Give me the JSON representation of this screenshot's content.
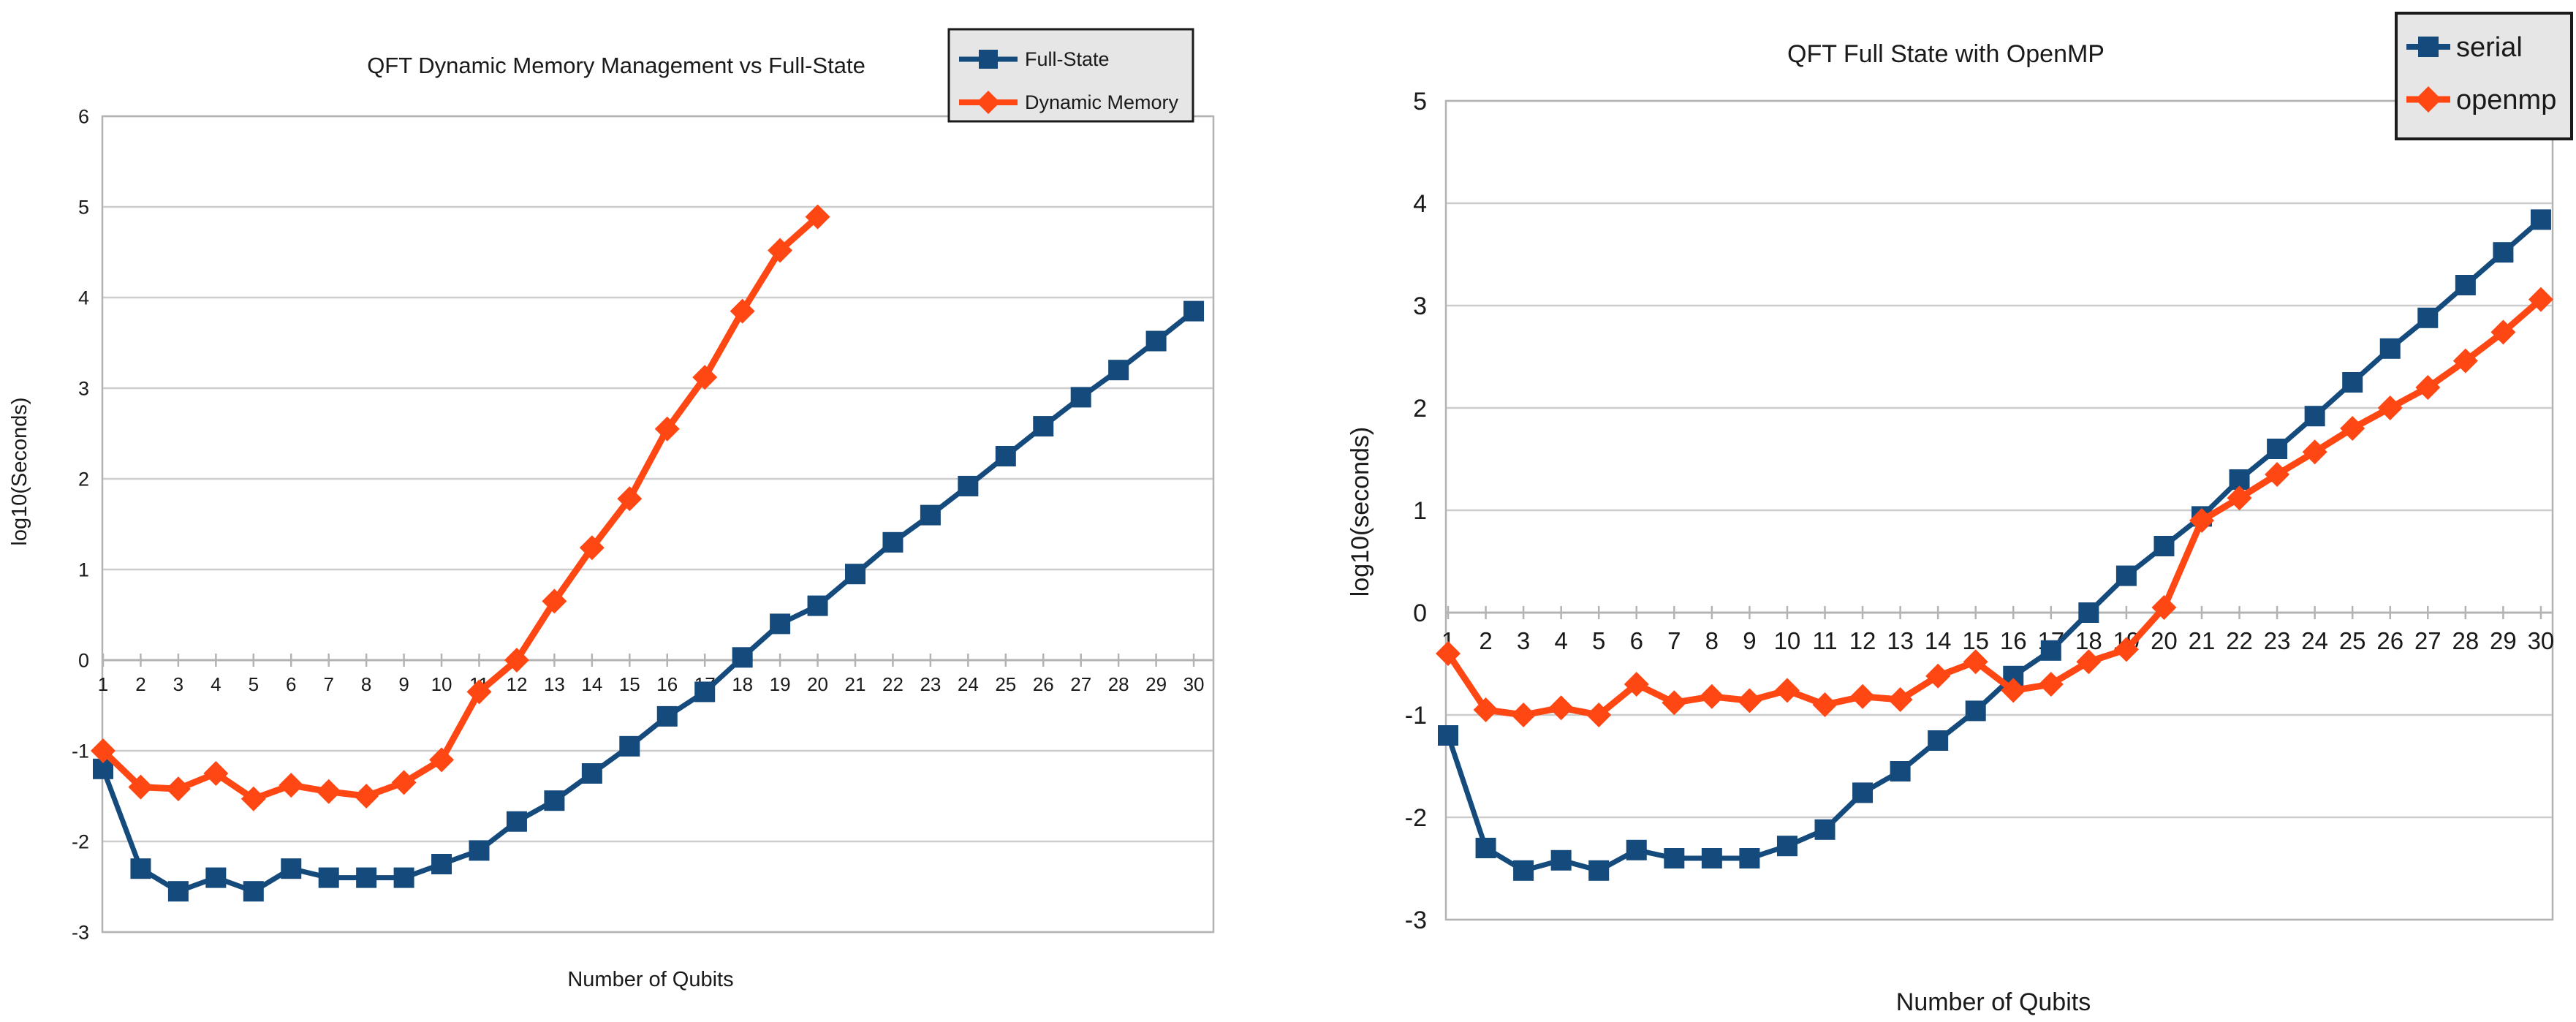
{
  "page": {
    "background": "#ffffff"
  },
  "colors": {
    "series_blue": "#144a7c",
    "series_orange": "#ff4714",
    "gridline": "#cccccc",
    "axis_line": "#b3b3b3",
    "text": "#1a1a1a",
    "legend_background": "#e6e6e6",
    "legend_border": "#1a1a1a"
  },
  "chart_data": [
    {
      "type": "line",
      "title": "QFT Dynamic Memory Management vs Full-State",
      "xlabel": "Number of Qubits",
      "ylabel": "log10(Seconds)",
      "x_categories": [
        1,
        2,
        3,
        4,
        5,
        6,
        7,
        8,
        9,
        10,
        11,
        12,
        13,
        14,
        15,
        16,
        17,
        18,
        19,
        20,
        21,
        22,
        23,
        24,
        25,
        26,
        27,
        28,
        29,
        30
      ],
      "y_ticks": [
        6,
        5,
        4,
        3,
        2,
        1,
        0,
        -1,
        -2,
        -3
      ],
      "ylim": [
        -3,
        6
      ],
      "x_axis_position": 0,
      "grid": true,
      "legend_position": "top-right",
      "series": [
        {
          "name": "Full-State",
          "color": "#144a7c",
          "marker": "square",
          "values": [
            -1.2,
            -2.3,
            -2.55,
            -2.4,
            -2.55,
            -2.3,
            -2.4,
            -2.4,
            -2.4,
            -2.25,
            -2.1,
            -1.78,
            -1.55,
            -1.25,
            -0.95,
            -0.62,
            -0.35,
            0.03,
            0.4,
            0.6,
            0.95,
            1.3,
            1.6,
            1.92,
            2.25,
            2.58,
            2.9,
            3.2,
            3.52,
            3.85
          ]
        },
        {
          "name": "Dynamic Memory",
          "color": "#ff4714",
          "marker": "diamond",
          "values": [
            -1.0,
            -1.4,
            -1.42,
            -1.25,
            -1.53,
            -1.38,
            -1.45,
            -1.5,
            -1.35,
            -1.1,
            -0.35,
            0.0,
            0.65,
            1.24,
            1.78,
            2.55,
            3.12,
            3.85,
            4.52,
            4.89
          ]
        }
      ]
    },
    {
      "type": "line",
      "title": "QFT Full State with OpenMP",
      "xlabel": "Number of Qubits",
      "ylabel": "log10(seconds)",
      "x_categories": [
        1,
        2,
        3,
        4,
        5,
        6,
        7,
        8,
        9,
        10,
        11,
        12,
        13,
        14,
        15,
        16,
        17,
        18,
        19,
        20,
        21,
        22,
        23,
        24,
        25,
        26,
        27,
        28,
        29,
        30
      ],
      "y_ticks": [
        5,
        4,
        3,
        2,
        1,
        0,
        -1,
        -2,
        -3
      ],
      "ylim": [
        -3,
        5
      ],
      "x_axis_position": 0,
      "grid": true,
      "legend_position": "top-right",
      "series": [
        {
          "name": "serial",
          "color": "#144a7c",
          "marker": "square",
          "values": [
            -1.2,
            -2.3,
            -2.52,
            -2.42,
            -2.52,
            -2.32,
            -2.4,
            -2.4,
            -2.4,
            -2.28,
            -2.12,
            -1.76,
            -1.55,
            -1.25,
            -0.96,
            -0.62,
            -0.37,
            0.0,
            0.36,
            0.65,
            0.94,
            1.3,
            1.6,
            1.92,
            2.25,
            2.58,
            2.88,
            3.2,
            3.52,
            3.84
          ]
        },
        {
          "name": "openmp",
          "color": "#ff4714",
          "marker": "diamond",
          "values": [
            -0.4,
            -0.95,
            -1.0,
            -0.93,
            -1.0,
            -0.7,
            -0.88,
            -0.82,
            -0.86,
            -0.76,
            -0.9,
            -0.82,
            -0.85,
            -0.62,
            -0.48,
            -0.76,
            -0.7,
            -0.48,
            -0.36,
            0.05,
            0.9,
            1.12,
            1.35,
            1.57,
            1.8,
            2.0,
            2.2,
            2.46,
            2.74,
            3.06
          ]
        }
      ]
    }
  ]
}
